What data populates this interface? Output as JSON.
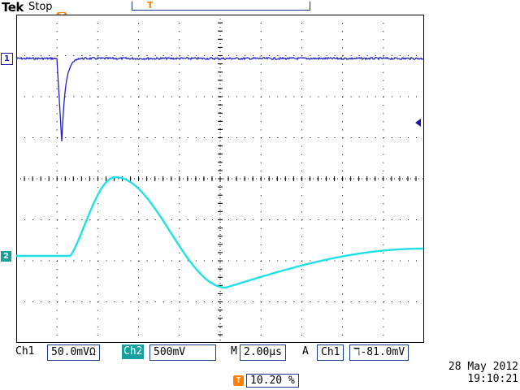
{
  "header": {
    "brand": "Tek",
    "status": "Stop",
    "trigger_marker": "T"
  },
  "channels": {
    "ch1_marker": "1",
    "ch2_marker": "2"
  },
  "footer": {
    "ch1_label": "Ch1",
    "ch1_scale": "50.0mVΩ",
    "ch2_label": "Ch2",
    "ch2_scale": "500mV",
    "timebase_label": "M",
    "timebase": "2.00µs",
    "trigger_mode": "A",
    "trigger_source": "Ch1",
    "trigger_slope": "⧹",
    "trigger_level": "ℸ-81.0mV",
    "trigger_percent_icon": "T",
    "trigger_percent": "10.20 %",
    "date": "28 May 2012",
    "time": "19:10:21"
  },
  "colors": {
    "ch1": "#2020c8",
    "ch2": "#20e0e8",
    "grid": "#000000",
    "trigger": "#ff7f00"
  }
}
